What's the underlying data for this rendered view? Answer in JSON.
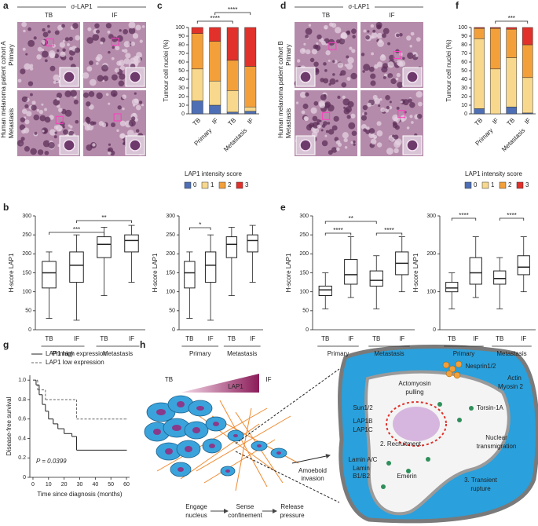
{
  "panel_labels": [
    "a",
    "b",
    "c",
    "d",
    "e",
    "f",
    "g",
    "h"
  ],
  "images": [
    {
      "header": "σ-LAP1",
      "columns": [
        "TB",
        "IF"
      ],
      "cohort": "Human melanoma patient cohort A",
      "rows": [
        "Primary",
        "Metastasis"
      ]
    },
    {
      "header": "σ-LAP1",
      "columns": [
        "TB",
        "IF"
      ],
      "cohort": "Human melanoma patient cohort B",
      "rows": [
        "Primary",
        "Metastasis"
      ]
    }
  ],
  "chart_data": [
    {
      "type": "bar",
      "stacked": true,
      "ylabel": "Tumour cell nuclei (%)",
      "categories": [
        "TB",
        "IF",
        "TB",
        "IF"
      ],
      "groups": [
        "Primary",
        "Metastasis"
      ],
      "series": [
        {
          "name": "0",
          "color": "#4e6fb5",
          "values": [
            15,
            10,
            2,
            3
          ]
        },
        {
          "name": "1",
          "color": "#f7d88c",
          "values": [
            37,
            28,
            25,
            5
          ]
        },
        {
          "name": "2",
          "color": "#f3a03a",
          "values": [
            41,
            46,
            35,
            47
          ]
        },
        {
          "name": "3",
          "color": "#e2302a",
          "values": [
            7,
            16,
            38,
            45
          ]
        }
      ],
      "ylim": [
        0,
        100
      ],
      "yticks": [
        0,
        10,
        20,
        30,
        40,
        50,
        60,
        70,
        80,
        90,
        100
      ],
      "significance": [
        "****",
        "****"
      ],
      "legend_title": "LAP1 intensity score"
    },
    {
      "type": "bar",
      "stacked": true,
      "ylabel": "Tumour cell nuclei (%)",
      "categories": [
        "TB",
        "IF",
        "TB",
        "IF"
      ],
      "groups": [
        "Primary",
        "Metastasis"
      ],
      "series": [
        {
          "name": "0",
          "color": "#4e6fb5",
          "values": [
            6,
            0,
            8,
            1
          ]
        },
        {
          "name": "1",
          "color": "#f7d88c",
          "values": [
            81,
            52,
            57,
            41
          ]
        },
        {
          "name": "2",
          "color": "#f3a03a",
          "values": [
            12,
            47,
            33,
            38
          ]
        },
        {
          "name": "3",
          "color": "#e2302a",
          "values": [
            1,
            1,
            2,
            20
          ]
        }
      ],
      "ylim": [
        0,
        100
      ],
      "yticks": [
        0,
        10,
        20,
        30,
        40,
        50,
        60,
        70,
        80,
        90,
        100
      ],
      "significance": [
        "***"
      ],
      "legend_title": "LAP1 intensity score"
    },
    {
      "type": "box",
      "ylabel": "H-score LAP1",
      "categories": [
        "TB",
        "IF",
        "TB",
        "IF"
      ],
      "groups": [
        "Primary",
        "Metastasis"
      ],
      "boxes": [
        {
          "min": 30,
          "q1": 110,
          "median": 150,
          "q3": 180,
          "max": 205
        },
        {
          "min": 25,
          "q1": 125,
          "median": 170,
          "q3": 205,
          "max": 250
        },
        {
          "min": 90,
          "q1": 190,
          "median": 225,
          "q3": 245,
          "max": 270
        },
        {
          "min": 125,
          "q1": 205,
          "median": 235,
          "q3": 250,
          "max": 275
        }
      ],
      "ylim": [
        0,
        300
      ],
      "yticks": [
        0,
        50,
        100,
        150,
        200,
        250,
        300
      ],
      "significance": [
        "***",
        "**"
      ]
    },
    {
      "type": "box",
      "ylabel": "H-score LAP1",
      "categories": [
        "TB",
        "IF",
        "TB",
        "IF"
      ],
      "groups": [
        "Primary",
        "Metastasis"
      ],
      "boxes": [
        {
          "min": 30,
          "q1": 110,
          "median": 150,
          "q3": 180,
          "max": 205
        },
        {
          "min": 25,
          "q1": 125,
          "median": 170,
          "q3": 205,
          "max": 250
        },
        {
          "min": 90,
          "q1": 190,
          "median": 225,
          "q3": 245,
          "max": 270
        },
        {
          "min": 125,
          "q1": 205,
          "median": 235,
          "q3": 250,
          "max": 275
        }
      ],
      "ylim": [
        0,
        300
      ],
      "yticks": [
        0,
        50,
        100,
        150,
        200,
        250,
        300
      ],
      "significance": [
        "*"
      ]
    },
    {
      "type": "box",
      "ylabel": "H-score LAP1",
      "categories": [
        "TB",
        "IF",
        "TB",
        "IF"
      ],
      "groups": [
        "Primary",
        "Metastasis"
      ],
      "boxes": [
        {
          "min": 55,
          "q1": 90,
          "median": 105,
          "q3": 115,
          "max": 150
        },
        {
          "min": 85,
          "q1": 120,
          "median": 145,
          "q3": 185,
          "max": 245
        },
        {
          "min": 55,
          "q1": 115,
          "median": 130,
          "q3": 155,
          "max": 195
        },
        {
          "min": 100,
          "q1": 145,
          "median": 175,
          "q3": 205,
          "max": 245
        }
      ],
      "ylim": [
        0,
        300
      ],
      "yticks": [
        0,
        50,
        100,
        150,
        200,
        250,
        300
      ],
      "significance": [
        "**",
        "****",
        "****"
      ]
    },
    {
      "type": "box",
      "ylabel": "H-score LAP1",
      "categories": [
        "TB",
        "IF",
        "TB",
        "IF"
      ],
      "groups": [
        "Primary",
        "Metastasis"
      ],
      "boxes": [
        {
          "min": 55,
          "q1": 100,
          "median": 110,
          "q3": 125,
          "max": 150
        },
        {
          "min": 85,
          "q1": 120,
          "median": 150,
          "q3": 190,
          "max": 245
        },
        {
          "min": 55,
          "q1": 120,
          "median": 135,
          "q3": 155,
          "max": 190
        },
        {
          "min": 100,
          "q1": 145,
          "median": 165,
          "q3": 195,
          "max": 245
        }
      ],
      "ylim": [
        0,
        300
      ],
      "yticks": [
        0,
        100,
        200,
        300
      ],
      "significance": [
        "****",
        "****"
      ]
    },
    {
      "type": "km",
      "ylabel": "Disease-free survival",
      "xlabel": "Time since diagnosis (months)",
      "series": [
        {
          "name": "LAP1 high expression",
          "color": "#222222",
          "line_style": "solid",
          "x": [
            0,
            2,
            4,
            6,
            8,
            10,
            13,
            16,
            20,
            25,
            28,
            60
          ],
          "values": [
            1,
            0.95,
            0.85,
            0.75,
            0.68,
            0.6,
            0.55,
            0.5,
            0.45,
            0.42,
            0.28,
            0.28
          ]
        },
        {
          "name": "LAP1 low expression",
          "color": "#666666",
          "line_style": "dashed",
          "x": [
            0,
            3,
            8,
            28,
            60
          ],
          "values": [
            1,
            0.9,
            0.8,
            0.6,
            0.6
          ]
        }
      ],
      "xlim": [
        -2,
        62
      ],
      "xticks": [
        0,
        10,
        20,
        30,
        40,
        50,
        60
      ],
      "ylim": [
        0,
        1.05
      ],
      "yticks": [
        0,
        0.2,
        0.4,
        0.6,
        0.8,
        {
          "value": 1,
          "label": "1.0"
        }
      ],
      "annotation": "P = 0.0399"
    }
  ],
  "diagram": {
    "gradient": [
      "TB",
      "LAP1",
      "IF"
    ],
    "amoeboid": [
      "Amoeboid",
      "invasion"
    ],
    "steps": [
      [
        "Engage",
        "nucleus"
      ],
      [
        "Sense",
        "confinement"
      ],
      [
        "Release",
        "pressure"
      ]
    ],
    "labels": {
      "nesprin": "Nesprin1/2",
      "actin": "Actin",
      "myosin": "Myosin 2",
      "actomyosin": [
        "Actomyosin",
        "pulling"
      ],
      "sun": "Sun1/2",
      "lap1b": "LAP1B",
      "lap1c": "LAP1C",
      "recruitment": "2. Recruitment",
      "torsin": "Torsin-1A",
      "transmigration": [
        "Nuclear",
        "transmigration"
      ],
      "laminac": "Lamin A/C",
      "laminb": [
        "Lamin",
        "B1/B2"
      ],
      "emerin": "Emerin",
      "rupture": [
        "3. Transient",
        "rupture"
      ]
    }
  }
}
